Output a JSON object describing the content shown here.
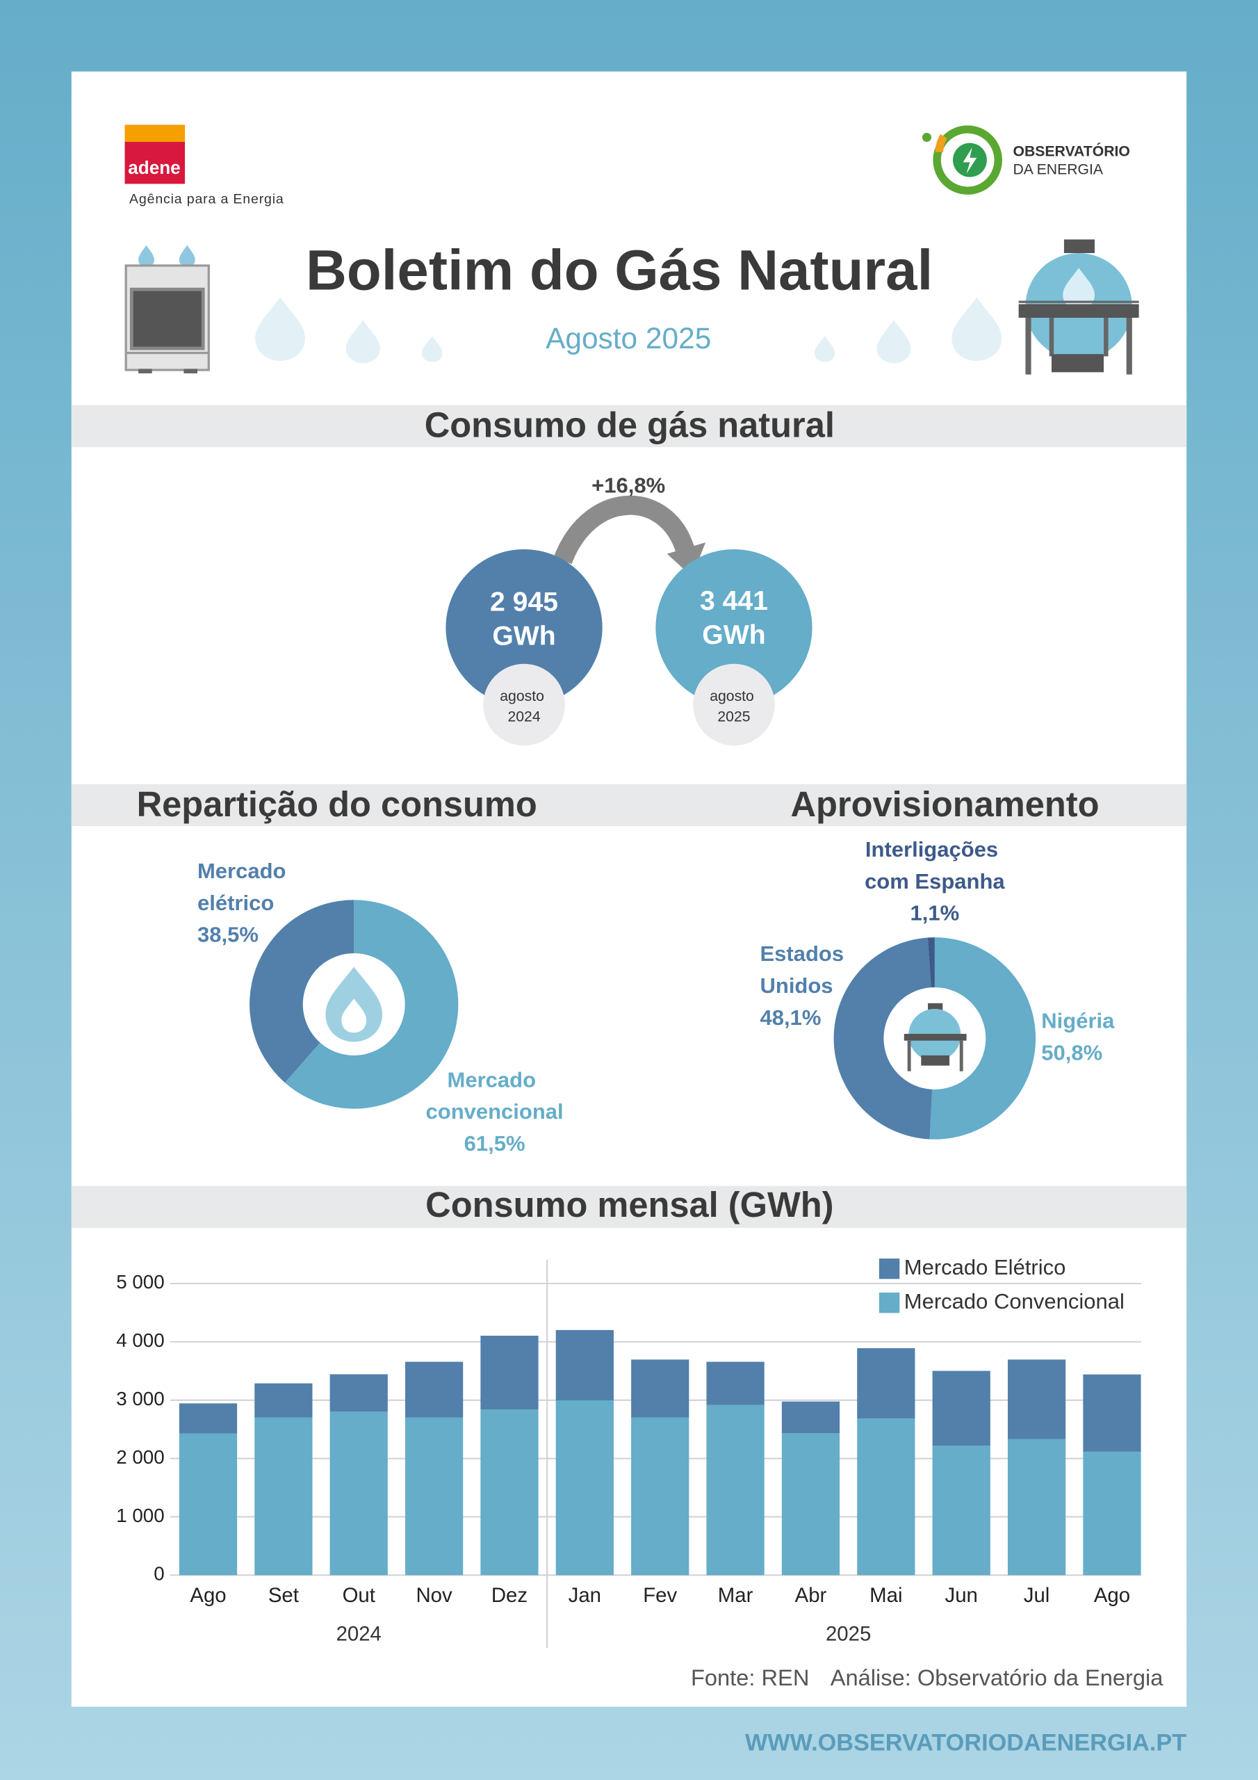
{
  "header": {
    "logo_left": "adene",
    "logo_left_tagline": "Agência para a Energia",
    "logo_right_line1": "OBSERVATÓRIO",
    "logo_right_line2": "DA ENERGIA",
    "title": "Boletim do Gás Natural",
    "subtitle": "Agosto 2025"
  },
  "consumption": {
    "title": "Consumo de gás natural",
    "change": "+16,8%",
    "previous": {
      "value": "2 945",
      "unit": "GWh",
      "period": "agosto 2024"
    },
    "current": {
      "value": "3 441",
      "unit": "GWh",
      "period": "agosto 2025"
    }
  },
  "chart_data": [
    {
      "type": "donut",
      "title": "Repartição do consumo",
      "categories": [
        "Mercado convencional",
        "Mercado elétrico"
      ],
      "values": [
        61.5,
        38.5
      ],
      "value_labels": [
        "61,5%",
        "38,5%"
      ],
      "colors": [
        "#65adc9",
        "#5280ab"
      ]
    },
    {
      "type": "donut",
      "title": "Aprovisionamento",
      "categories": [
        "Nigéria",
        "Estados Unidos",
        "Interligações com Espanha"
      ],
      "values": [
        50.8,
        48.1,
        1.1
      ],
      "value_labels": [
        "50,8%",
        "48,1%",
        "1,1%"
      ],
      "colors": [
        "#65adc9",
        "#5280ab",
        "#3d5a8a"
      ]
    },
    {
      "type": "stacked_bar",
      "title": "Consumo mensal (GWh)",
      "categories": [
        "Ago",
        "Set",
        "Out",
        "Nov",
        "Dez",
        "Jan",
        "Fev",
        "Mar",
        "Abr",
        "Mai",
        "Jun",
        "Jul",
        "Ago"
      ],
      "groups": [
        {
          "label": "2024",
          "size": 5
        },
        {
          "label": "2025",
          "size": 8
        }
      ],
      "series": [
        {
          "name": "Mercado Elétrico",
          "color": "#5280ab",
          "values": [
            515,
            584,
            642,
            954,
            1265,
            1206,
            992,
            740,
            545,
            1206,
            1284,
            1361,
            1325
          ]
        },
        {
          "name": "Mercado Convencional",
          "color": "#65adc9",
          "values": [
            2430,
            2704,
            2802,
            2704,
            2840,
            2996,
            2704,
            2918,
            2432,
            2685,
            2218,
            2335,
            2116
          ]
        }
      ],
      "ylim": [
        0,
        5000
      ],
      "yticks": [
        0,
        {
          "value": 1000,
          "label": "1 000"
        },
        {
          "value": 2000,
          "label": "2 000"
        },
        {
          "value": 3000,
          "label": "3 000"
        },
        {
          "value": 4000,
          "label": "4 000"
        },
        {
          "value": 5000,
          "label": "5 000"
        }
      ],
      "grid": true,
      "legend": "top-right"
    }
  ],
  "footer": {
    "source": "Fonte: REN",
    "analysis": "Análise: Observatório da Energia",
    "website": "WWW.OBSERVATORIODAENERGIA.PT"
  }
}
